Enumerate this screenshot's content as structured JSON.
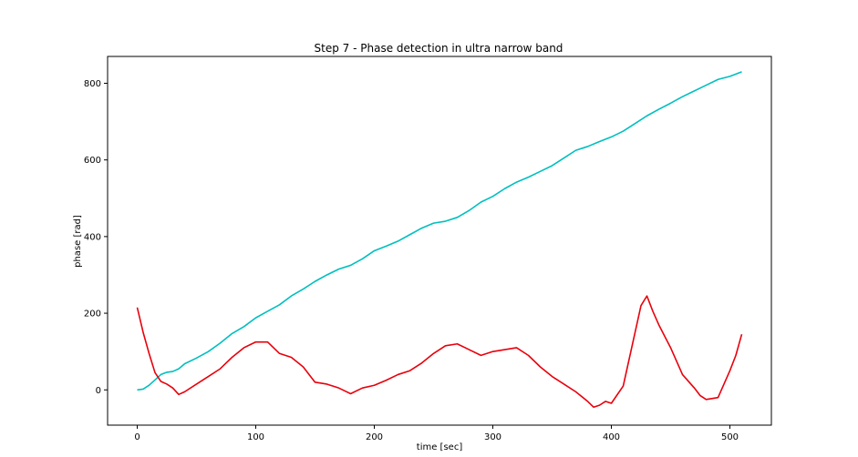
{
  "chart_data": {
    "type": "line",
    "title": "Step 7 - Phase detection in ultra narrow band",
    "xlabel": "time [sec]",
    "ylabel": "phase [rad]",
    "xlim": [
      -25,
      535
    ],
    "ylim": [
      -92,
      870
    ],
    "xticks": [
      0,
      100,
      200,
      300,
      400,
      500
    ],
    "yticks": [
      0,
      200,
      400,
      600,
      800
    ],
    "grid": false,
    "legend": "none",
    "series": [
      {
        "color": "#00bfbf",
        "x": [
          0,
          5,
          10,
          15,
          20,
          25,
          30,
          35,
          40,
          50,
          60,
          70,
          80,
          90,
          100,
          110,
          120,
          130,
          140,
          150,
          160,
          170,
          180,
          190,
          200,
          210,
          220,
          230,
          240,
          250,
          260,
          270,
          280,
          290,
          300,
          310,
          320,
          330,
          340,
          350,
          360,
          370,
          380,
          390,
          400,
          410,
          420,
          430,
          440,
          450,
          460,
          470,
          480,
          490,
          500,
          510
        ],
        "values": [
          0,
          2,
          12,
          26,
          40,
          46,
          48,
          55,
          68,
          83,
          100,
          122,
          147,
          165,
          188,
          205,
          222,
          245,
          263,
          283,
          300,
          315,
          325,
          342,
          363,
          375,
          388,
          405,
          422,
          435,
          440,
          450,
          468,
          490,
          505,
          525,
          542,
          555,
          570,
          585,
          605,
          625,
          635,
          648,
          660,
          675,
          695,
          715,
          732,
          748,
          765,
          780,
          795,
          810,
          818,
          830
        ]
      },
      {
        "color": "#e8000b",
        "x": [
          0,
          5,
          10,
          15,
          20,
          25,
          30,
          35,
          40,
          50,
          60,
          70,
          80,
          90,
          100,
          110,
          115,
          120,
          130,
          140,
          150,
          160,
          170,
          180,
          190,
          200,
          210,
          220,
          230,
          240,
          250,
          260,
          270,
          280,
          290,
          300,
          310,
          320,
          330,
          340,
          350,
          360,
          370,
          380,
          385,
          390,
          395,
          400,
          410,
          420,
          425,
          430,
          435,
          440,
          450,
          460,
          470,
          475,
          480,
          490,
          500,
          505,
          510
        ],
        "values": [
          215,
          150,
          95,
          45,
          22,
          15,
          5,
          -12,
          -5,
          15,
          35,
          55,
          85,
          110,
          125,
          125,
          110,
          95,
          85,
          60,
          20,
          15,
          5,
          -10,
          5,
          12,
          25,
          40,
          50,
          70,
          95,
          115,
          120,
          105,
          90,
          100,
          105,
          110,
          90,
          60,
          35,
          15,
          -5,
          -30,
          -45,
          -40,
          -30,
          -35,
          10,
          150,
          220,
          245,
          205,
          170,
          110,
          40,
          5,
          -15,
          -25,
          -20,
          50,
          90,
          145
        ]
      }
    ]
  }
}
